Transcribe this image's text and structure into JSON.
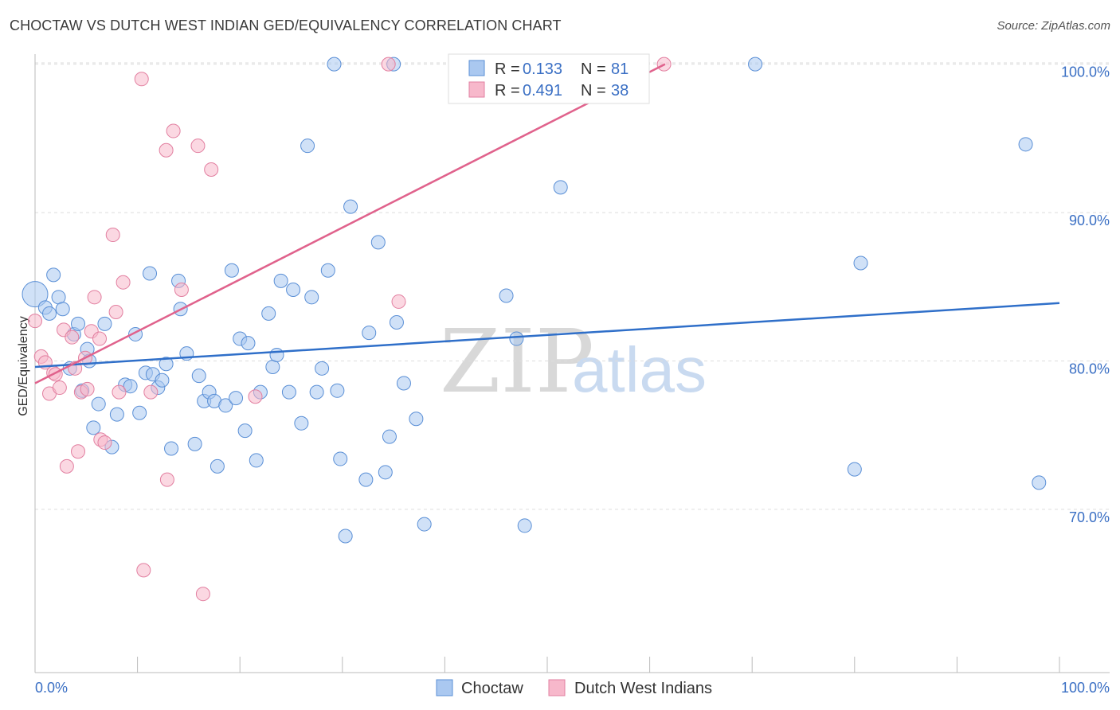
{
  "header": {
    "title": "CHOCTAW VS DUTCH WEST INDIAN GED/EQUIVALENCY CORRELATION CHART",
    "source": "Source: ZipAtlas.com"
  },
  "watermark": {
    "zip": "ZIP",
    "atlas": "atlas"
  },
  "legend": {
    "rows": [
      {
        "r_label": "R = ",
        "r_value": "0.133",
        "n_label": "N = ",
        "n_value": "81"
      },
      {
        "r_label": "R = ",
        "r_value": "0.491",
        "n_label": "N = ",
        "n_value": "38"
      }
    ]
  },
  "colors": {
    "choctaw_fill": "#aac8f0",
    "choctaw_stroke": "#5a8fd6",
    "choctaw_line": "#2f6fc9",
    "dutch_fill": "#f7b8cb",
    "dutch_stroke": "#e27fa0",
    "dutch_line": "#e0628c",
    "grid": "#dddddd",
    "axis": "#bbbbbb"
  },
  "chart_data": {
    "type": "scatter",
    "title": "CHOCTAW VS DUTCH WEST INDIAN GED/EQUIVALENCY CORRELATION CHART",
    "xlabel": "",
    "ylabel": "GED/Equivalency",
    "xlim": [
      0,
      100
    ],
    "ylim": [
      59.0,
      101.0
    ],
    "x_tick_labels": [
      "0.0%",
      "100.0%"
    ],
    "y_ticks": [
      70,
      80,
      90,
      100
    ],
    "y_tick_labels": [
      "70.0%",
      "80.0%",
      "90.0%",
      "100.0%"
    ],
    "legend_position": "top-center",
    "series": [
      {
        "name": "Choctaw",
        "r": 0.133,
        "n": 81,
        "trend": {
          "x0": 0,
          "y0": 79.6,
          "x1": 100,
          "y1": 83.9
        },
        "points": [
          [
            0.0,
            84.5
          ],
          [
            1.0,
            83.6
          ],
          [
            1.8,
            85.8
          ],
          [
            2.3,
            84.3
          ],
          [
            2.7,
            83.5
          ],
          [
            1.4,
            83.2
          ],
          [
            3.4,
            79.5
          ],
          [
            3.8,
            81.8
          ],
          [
            4.2,
            82.5
          ],
          [
            4.6,
            78.0
          ],
          [
            5.1,
            80.8
          ],
          [
            5.3,
            80.0
          ],
          [
            5.7,
            75.5
          ],
          [
            6.2,
            77.1
          ],
          [
            6.8,
            82.5
          ],
          [
            7.5,
            74.2
          ],
          [
            8.0,
            76.4
          ],
          [
            8.8,
            78.4
          ],
          [
            9.3,
            78.3
          ],
          [
            9.8,
            81.8
          ],
          [
            10.2,
            76.5
          ],
          [
            10.8,
            79.2
          ],
          [
            11.2,
            85.9
          ],
          [
            11.5,
            79.1
          ],
          [
            12.0,
            78.2
          ],
          [
            12.8,
            79.8
          ],
          [
            12.4,
            78.7
          ],
          [
            13.3,
            74.1
          ],
          [
            14.0,
            85.4
          ],
          [
            14.2,
            83.5
          ],
          [
            14.8,
            80.5
          ],
          [
            15.6,
            74.4
          ],
          [
            16.0,
            79.0
          ],
          [
            16.5,
            77.3
          ],
          [
            17.0,
            77.9
          ],
          [
            17.5,
            77.3
          ],
          [
            17.8,
            72.9
          ],
          [
            18.6,
            77.0
          ],
          [
            19.2,
            86.1
          ],
          [
            19.6,
            77.5
          ],
          [
            20.0,
            81.5
          ],
          [
            20.5,
            75.3
          ],
          [
            20.8,
            81.2
          ],
          [
            21.6,
            73.3
          ],
          [
            22.0,
            77.9
          ],
          [
            22.8,
            83.2
          ],
          [
            23.2,
            79.6
          ],
          [
            23.6,
            80.4
          ],
          [
            24.0,
            85.4
          ],
          [
            24.8,
            77.9
          ],
          [
            25.2,
            84.8
          ],
          [
            26.0,
            75.8
          ],
          [
            26.6,
            94.5
          ],
          [
            27.0,
            84.3
          ],
          [
            27.5,
            77.9
          ],
          [
            28.0,
            79.5
          ],
          [
            28.6,
            86.1
          ],
          [
            29.2,
            100.0
          ],
          [
            29.5,
            78.0
          ],
          [
            29.8,
            73.4
          ],
          [
            30.3,
            68.2
          ],
          [
            30.8,
            90.4
          ],
          [
            32.3,
            72.0
          ],
          [
            32.6,
            81.9
          ],
          [
            33.5,
            88.0
          ],
          [
            34.2,
            72.5
          ],
          [
            34.6,
            74.9
          ],
          [
            35.0,
            100.0
          ],
          [
            35.3,
            82.6
          ],
          [
            36.0,
            78.5
          ],
          [
            37.2,
            76.1
          ],
          [
            38.0,
            69.0
          ],
          [
            46.0,
            84.4
          ],
          [
            47.0,
            81.5
          ],
          [
            47.8,
            68.9
          ],
          [
            51.3,
            91.7
          ],
          [
            70.3,
            100.0
          ],
          [
            80.0,
            72.7
          ],
          [
            80.6,
            86.6
          ],
          [
            96.7,
            94.6
          ],
          [
            98.0,
            71.8
          ]
        ]
      },
      {
        "name": "Dutch West Indians",
        "r": 0.491,
        "n": 38,
        "trend": {
          "x0": 0,
          "y0": 78.5,
          "x1": 61.5,
          "y1": 100.0
        },
        "points": [
          [
            0.0,
            82.7
          ],
          [
            0.6,
            80.3
          ],
          [
            1.0,
            79.9
          ],
          [
            1.4,
            77.8
          ],
          [
            1.8,
            79.2
          ],
          [
            2.0,
            79.1
          ],
          [
            2.4,
            78.2
          ],
          [
            2.8,
            82.1
          ],
          [
            3.1,
            72.9
          ],
          [
            3.6,
            81.6
          ],
          [
            3.9,
            79.5
          ],
          [
            4.2,
            73.9
          ],
          [
            4.5,
            77.9
          ],
          [
            4.9,
            80.2
          ],
          [
            5.1,
            78.1
          ],
          [
            5.5,
            82.0
          ],
          [
            5.8,
            84.3
          ],
          [
            6.3,
            81.5
          ],
          [
            6.4,
            74.7
          ],
          [
            6.8,
            74.5
          ],
          [
            7.9,
            83.3
          ],
          [
            7.6,
            88.5
          ],
          [
            8.2,
            77.9
          ],
          [
            8.6,
            85.3
          ],
          [
            10.4,
            99.0
          ],
          [
            10.6,
            65.9
          ],
          [
            11.3,
            77.9
          ],
          [
            12.8,
            94.2
          ],
          [
            12.9,
            72.0
          ],
          [
            13.5,
            95.5
          ],
          [
            14.3,
            84.8
          ],
          [
            15.9,
            94.5
          ],
          [
            16.4,
            64.3
          ],
          [
            17.2,
            92.9
          ],
          [
            21.5,
            77.6
          ],
          [
            34.5,
            100.0
          ],
          [
            35.5,
            84.0
          ],
          [
            61.4,
            100.0
          ]
        ]
      }
    ]
  },
  "bottom_legend": {
    "items": [
      "Choctaw",
      "Dutch West Indians"
    ]
  }
}
